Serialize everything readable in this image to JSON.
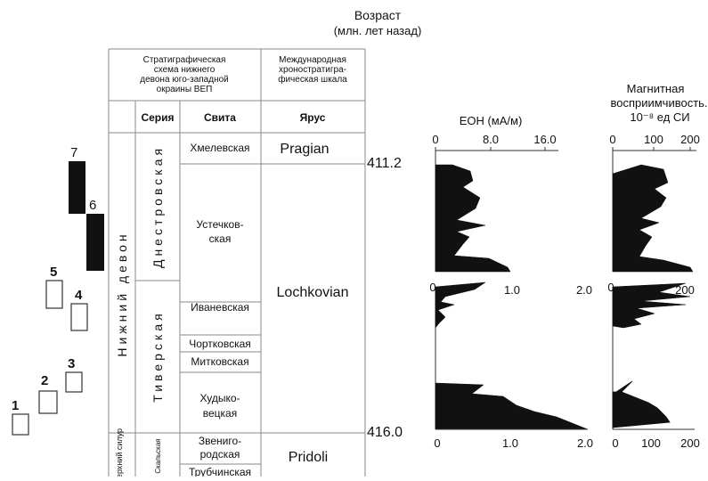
{
  "title": {
    "line1": "Возраст",
    "line2": "(млн. лет назад)"
  },
  "table": {
    "left_header": [
      "Стратиграфическая",
      "схема нижнего",
      "девона юго-западной",
      "окраины ВЕП"
    ],
    "right_header": [
      "Международная",
      "хроностратигра-",
      "фическая шкала"
    ],
    "col_seria": "Серия",
    "col_svita": "Свита",
    "col_yarus": "Ярус",
    "system_lower_devon": "Нижний девон",
    "system_upper_silur": "Верхний силур",
    "series": {
      "dniester": "Днестровская",
      "tiver": "Тиверская",
      "skala": "Скальская"
    },
    "suites": {
      "khmelev": "Хмелевская",
      "ustechkov_1": "Устечков-",
      "ustechkov_2": "ская",
      "ivanev": "Иваневская",
      "chortkov": "Чортковская",
      "mitkov": "Митковская",
      "khudyk_1": "Худыко-",
      "khudyk_2": "вецкая",
      "zvenig_1": "Звениго-",
      "zvenig_2": "родская",
      "trubch": "Трубчинская"
    },
    "stages": {
      "pragian": "Pragian",
      "lochkovian": "Lochkovian",
      "pridoli": "Pridoli"
    },
    "ages": {
      "a1": "411.2",
      "a2": "416.0"
    }
  },
  "section_labels": [
    "1",
    "2",
    "3",
    "4",
    "5",
    "6",
    "7"
  ],
  "eoh": {
    "title": "ЕОН (мА/м)",
    "upper_ticks": [
      "0",
      "8.0",
      "16.0"
    ],
    "lower_ticks_top": [
      "0",
      "1.0",
      "2.0"
    ],
    "lower_ticks_bottom": [
      "0",
      "1.0",
      "2.0"
    ]
  },
  "ms": {
    "title_1": "Магнитная",
    "title_2": "восприимчивость.",
    "title_3": "10⁻⁸ ед СИ",
    "upper_ticks": [
      "0",
      "100",
      "200"
    ],
    "lower_ticks_top": [
      "0",
      "",
      "200"
    ],
    "lower_ticks_bottom": [
      "0",
      "100",
      "200"
    ]
  }
}
